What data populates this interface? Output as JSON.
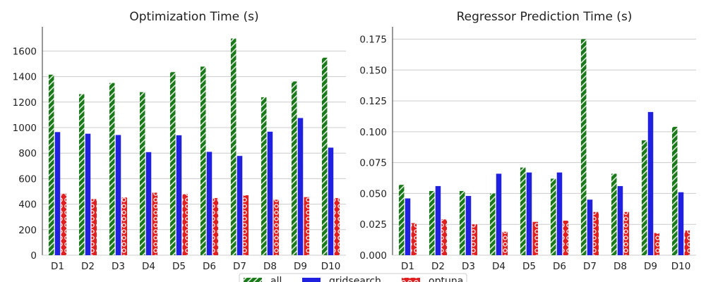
{
  "chart_data": [
    {
      "type": "bar",
      "title": "Optimization Time (s)",
      "xlabel": "",
      "ylabel": "",
      "categories": [
        "D1",
        "D2",
        "D3",
        "D4",
        "D5",
        "D6",
        "D7",
        "D8",
        "D9",
        "D10"
      ],
      "ylim": [
        0,
        1790
      ],
      "yticks": [
        0,
        200,
        400,
        600,
        800,
        1000,
        1200,
        1400,
        1600
      ],
      "series": [
        {
          "name": "all",
          "values": [
            1415,
            1262,
            1350,
            1278,
            1435,
            1478,
            1698,
            1238,
            1362,
            1548
          ]
        },
        {
          "name": "gridsearch",
          "values": [
            965,
            952,
            942,
            808,
            940,
            810,
            778,
            968,
            1075,
            843
          ]
        },
        {
          "name": "optuna",
          "values": [
            482,
            440,
            452,
            490,
            478,
            448,
            470,
            435,
            455,
            448
          ]
        }
      ],
      "grid": "horizontal",
      "legend": "bottom-center"
    },
    {
      "type": "bar",
      "title": "Regressor Prediction Time (s)",
      "xlabel": "",
      "ylabel": "",
      "categories": [
        "D1",
        "D2",
        "D3",
        "D4",
        "D5",
        "D6",
        "D7",
        "D8",
        "D9",
        "D10"
      ],
      "ylim": [
        0,
        0.185
      ],
      "yticks": [
        0.0,
        0.025,
        0.05,
        0.075,
        0.1,
        0.125,
        0.15,
        0.175
      ],
      "series": [
        {
          "name": "all",
          "values": [
            0.057,
            0.052,
            0.052,
            0.05,
            0.071,
            0.062,
            0.175,
            0.066,
            0.093,
            0.104
          ]
        },
        {
          "name": "gridsearch",
          "values": [
            0.046,
            0.056,
            0.048,
            0.066,
            0.067,
            0.067,
            0.045,
            0.056,
            0.116,
            0.051
          ]
        },
        {
          "name": "optuna",
          "values": [
            0.026,
            0.029,
            0.025,
            0.019,
            0.027,
            0.028,
            0.035,
            0.035,
            0.018,
            0.02
          ]
        }
      ],
      "grid": "horizontal",
      "legend": "bottom-center"
    }
  ],
  "colors": {
    "all": "#1a7a1a",
    "gridsearch": "#2020e0",
    "optuna": "#e02020"
  },
  "legend": {
    "items": [
      "all",
      "gridsearch",
      "optuna"
    ]
  }
}
